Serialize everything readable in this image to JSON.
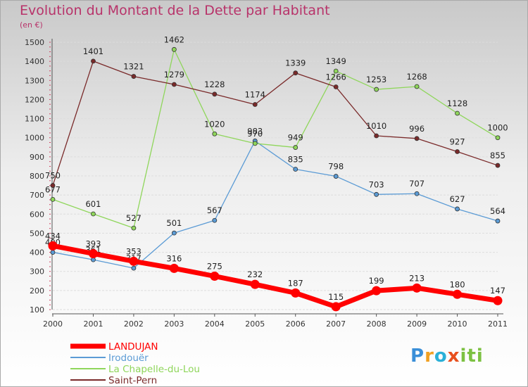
{
  "title": "Evolution du Montant de la Dette par Habitant",
  "subtitle": "(en €)",
  "logo": {
    "text": "Proxiti"
  },
  "chart_data": {
    "type": "line",
    "title": "Evolution du Montant de la Dette par Habitant",
    "ylabel": "(en €)",
    "ylim": [
      100,
      1500
    ],
    "yticks": [
      100,
      200,
      300,
      400,
      500,
      600,
      700,
      800,
      900,
      1000,
      1100,
      1200,
      1300,
      1400,
      1500
    ],
    "categories": [
      "2000",
      "2001",
      "2002",
      "2003",
      "2004",
      "2005",
      "2006",
      "2007",
      "2008",
      "2009",
      "2010",
      "2011"
    ],
    "grid": "horizontal",
    "legend": "bottom-left",
    "series": [
      {
        "name": "LANDUJAN",
        "color": "#ff0000",
        "values": [
          434,
          393,
          353,
          316,
          275,
          232,
          187,
          115,
          199,
          213,
          180,
          147
        ]
      },
      {
        "name": "Irodouër",
        "color": "#5b9bd5",
        "values": [
          400,
          361,
          317,
          501,
          567,
          983,
          835,
          798,
          703,
          707,
          627,
          564
        ]
      },
      {
        "name": "La Chapelle-du-Lou",
        "color": "#8fd65b",
        "values": [
          677,
          601,
          527,
          1462,
          1020,
          970,
          949,
          1349,
          1253,
          1268,
          1128,
          1000
        ]
      },
      {
        "name": "Saint-Pern",
        "color": "#7a2a2a",
        "values": [
          750,
          1401,
          1321,
          1279,
          1228,
          1174,
          1339,
          1266,
          1010,
          996,
          927,
          855
        ]
      }
    ]
  }
}
